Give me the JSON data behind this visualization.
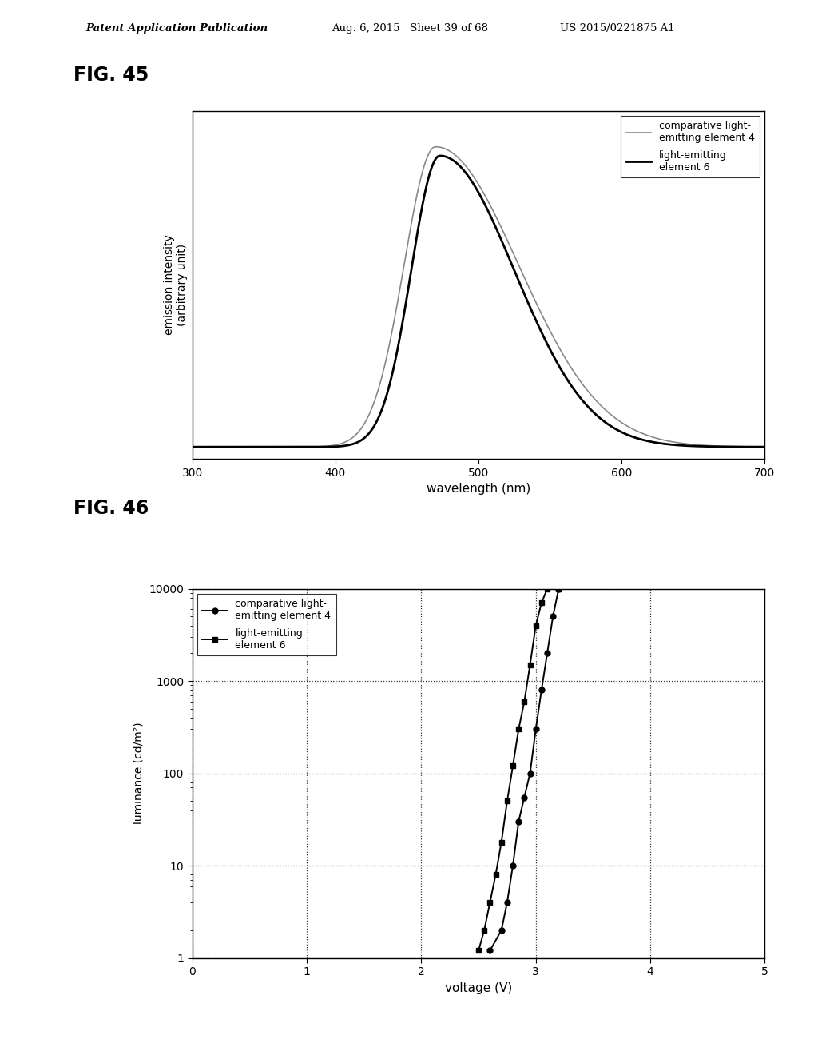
{
  "fig45_title": "FIG. 45",
  "fig46_title": "FIG. 46",
  "header_left": "Patent Application Publication",
  "header_mid": "Aug. 6, 2015   Sheet 39 of 68",
  "header_right": "US 2015/0221875 A1",
  "fig45": {
    "xlabel": "wavelength (nm)",
    "ylabel": "emission intensity\n(arbitrary unit)",
    "xlim": [
      300,
      700
    ],
    "xticks": [
      300,
      400,
      500,
      600,
      700
    ],
    "legend1": "comparative light-\nemitting element 4",
    "legend2": "light-emitting\nelement 6",
    "peak_nm": 470,
    "line_color1": "#888888",
    "line_color2": "#000000",
    "lw1": 1.2,
    "lw2": 2.0
  },
  "fig46": {
    "xlabel": "voltage (V)",
    "ylabel": "luminance (cd/m²)",
    "xlim": [
      0,
      5
    ],
    "xticks": [
      0,
      1,
      2,
      3,
      4,
      5
    ],
    "legend1": "comparative light-\nemitting element 4",
    "legend2": "light-emitting\nelement 6",
    "line_color": "#000000",
    "comp_voltage": [
      2.6,
      2.7,
      2.75,
      2.8,
      2.85,
      2.9,
      2.95,
      3.0,
      3.05,
      3.1,
      3.15,
      3.2
    ],
    "comp_luminance": [
      1.2,
      2.0,
      4.0,
      10,
      30,
      55,
      100,
      300,
      800,
      2000,
      5000,
      10000
    ],
    "elem6_voltage": [
      2.5,
      2.55,
      2.6,
      2.65,
      2.7,
      2.75,
      2.8,
      2.85,
      2.9,
      2.95,
      3.0,
      3.05,
      3.1,
      3.2
    ],
    "elem6_luminance": [
      1.2,
      2.0,
      4.0,
      8.0,
      18,
      50,
      120,
      300,
      600,
      1500,
      4000,
      7000,
      10000,
      10000
    ]
  }
}
